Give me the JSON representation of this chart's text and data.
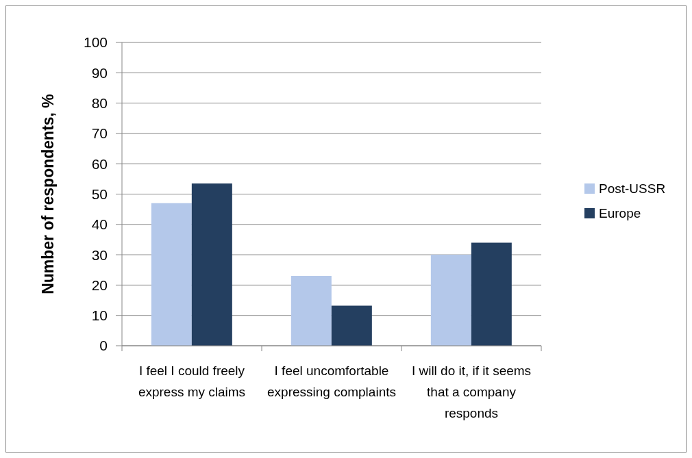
{
  "chart_data": {
    "type": "bar",
    "categories": [
      "I feel I could freely express my claims",
      "I feel uncomfortable expressing complaints",
      "I will do it, if it seems that a company responds"
    ],
    "series": [
      {
        "name": "Post-USSR",
        "color": "#b4c8ea",
        "values": [
          47,
          23,
          30
        ]
      },
      {
        "name": "Europe",
        "color": "#243f60",
        "values": [
          53.5,
          13.2,
          34
        ]
      }
    ],
    "ylabel": "Number of respondents, %",
    "ylim": [
      0,
      100
    ],
    "yticks": [
      0,
      10,
      20,
      30,
      40,
      50,
      60,
      70,
      80,
      90,
      100
    ],
    "grid": "y",
    "legend": "right"
  }
}
